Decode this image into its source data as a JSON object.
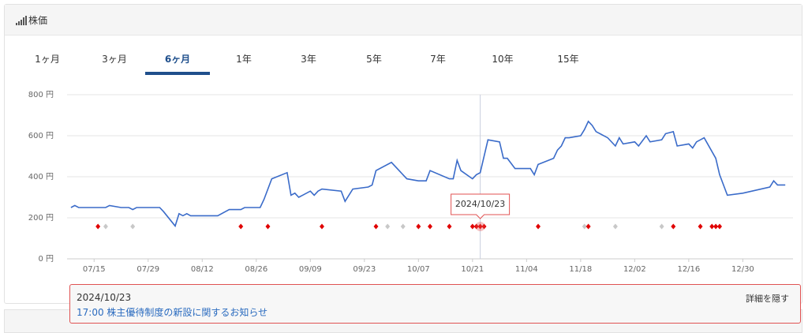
{
  "header": {
    "title": "株価"
  },
  "tabs": {
    "items": [
      "1ヶ月",
      "3ヶ月",
      "6ヶ月",
      "1年",
      "3年",
      "5年",
      "7年",
      "10年",
      "15年"
    ],
    "active": 2
  },
  "chart_data": {
    "type": "line",
    "x": [
      "07/09",
      "07/10",
      "07/11",
      "07/18",
      "07/19",
      "07/22",
      "07/24",
      "07/25",
      "07/26",
      "08/01",
      "08/02",
      "08/05",
      "08/06",
      "08/07",
      "08/08",
      "08/09",
      "08/16",
      "08/19",
      "08/22",
      "08/23",
      "08/27",
      "08/28",
      "08/30",
      "09/03",
      "09/04",
      "09/05",
      "09/06",
      "09/09",
      "09/10",
      "09/11",
      "09/12",
      "09/17",
      "09/18",
      "09/20",
      "09/24",
      "09/25",
      "09/26",
      "09/30",
      "10/03",
      "10/04",
      "10/07",
      "10/09",
      "10/10",
      "10/15",
      "10/16",
      "10/17",
      "10/18",
      "10/21",
      "10/22",
      "10/23",
      "10/25",
      "10/28",
      "10/29",
      "10/30",
      "11/01",
      "11/05",
      "11/06",
      "11/07",
      "11/11",
      "11/12",
      "11/13",
      "11/14",
      "11/15",
      "11/18",
      "11/19",
      "11/20",
      "11/21",
      "11/22",
      "11/25",
      "11/27",
      "11/28",
      "11/29",
      "12/02",
      "12/03",
      "12/05",
      "12/06",
      "12/09",
      "12/10",
      "12/12",
      "12/13",
      "12/16",
      "12/17",
      "12/18",
      "12/20",
      "12/23",
      "12/24",
      "12/26",
      "12/30",
      "01/06",
      "01/07",
      "01/08",
      "01/10"
    ],
    "values": [
      250,
      260,
      250,
      250,
      260,
      250,
      250,
      240,
      250,
      250,
      230,
      160,
      220,
      210,
      220,
      210,
      210,
      240,
      240,
      250,
      250,
      290,
      390,
      420,
      310,
      320,
      300,
      330,
      310,
      330,
      340,
      330,
      280,
      340,
      350,
      360,
      430,
      470,
      410,
      390,
      380,
      380,
      430,
      390,
      390,
      480,
      430,
      390,
      410,
      420,
      580,
      570,
      490,
      490,
      440,
      440,
      410,
      460,
      490,
      530,
      550,
      590,
      590,
      600,
      630,
      670,
      650,
      620,
      590,
      550,
      590,
      560,
      570,
      550,
      600,
      570,
      580,
      610,
      620,
      550,
      560,
      540,
      570,
      590,
      490,
      410,
      310,
      320,
      350,
      380,
      360,
      360
    ],
    "color": "#3a6bc9",
    "xlim": [
      "07/08",
      "01/12"
    ],
    "xticks": [
      "07/15",
      "07/29",
      "08/12",
      "08/26",
      "09/09",
      "09/23",
      "10/07",
      "10/21",
      "11/04",
      "11/18",
      "12/02",
      "12/16",
      "12/30"
    ],
    "ylim": [
      0,
      800
    ],
    "yticks": [
      {
        "value": 0,
        "label": "0 円"
      },
      {
        "value": 200,
        "label": "200 円"
      },
      {
        "value": 400,
        "label": "400 円"
      },
      {
        "value": 600,
        "label": "600 円"
      },
      {
        "value": 800,
        "label": "800 円"
      }
    ],
    "grid": true,
    "events": {
      "x": [
        "07/16",
        "07/18",
        "07/25",
        "08/22",
        "08/29",
        "09/12",
        "09/26",
        "09/29",
        "10/03",
        "10/07",
        "10/10",
        "10/15",
        "10/21",
        "10/22",
        "10/23",
        "10/24",
        "11/07",
        "11/19",
        "11/20",
        "11/27",
        "12/09",
        "12/12",
        "12/19",
        "12/22",
        "12/23",
        "12/24"
      ],
      "colors": [
        "#e00000",
        "#c8c8c8",
        "#c8c8c8",
        "#e00000",
        "#e00000",
        "#e00000",
        "#e00000",
        "#c8c8c8",
        "#c8c8c8",
        "#e00000",
        "#e00000",
        "#e00000",
        "#e00000",
        "#e00000",
        "#e00000",
        "#e00000",
        "#e00000",
        "#c8c8c8",
        "#e00000",
        "#c8c8c8",
        "#c8c8c8",
        "#e00000",
        "#e00000",
        "#e00000",
        "#e00000",
        "#e00000"
      ]
    },
    "cursor": {
      "x": "10/23",
      "label": "2024/10/23"
    }
  },
  "news": {
    "date": "2024/10/23",
    "time": "17:00",
    "title": "株主優待制度の新設に関するお知らせ",
    "toggle": "詳細を隠す"
  }
}
